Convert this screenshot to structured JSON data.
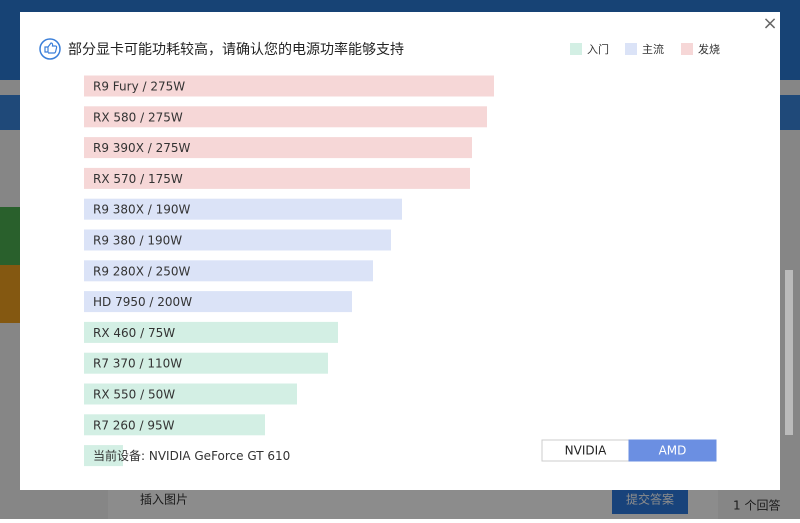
{
  "chart_data": {
    "type": "bar",
    "title": "部分显卡可能功耗较高，请确认您的电源功率能够支持",
    "categories": [
      "R9 Fury / 275W",
      "RX 580 / 275W",
      "R9 390X / 275W",
      "RX 570 / 175W",
      "R9 380X / 190W",
      "R9 380 / 190W",
      "R9 280X / 250W",
      "HD 7950 / 200W",
      "RX 460 / 75W",
      "R7 370 / 110W",
      "RX 550 / 50W",
      "R7 260 / 95W",
      "当前设备: NVIDIA GeForce GT 610"
    ],
    "series": [
      {
        "name": "入门",
        "color": "#d3efe4",
        "values": [
          null,
          null,
          null,
          null,
          null,
          null,
          null,
          null,
          254,
          244,
          213,
          181,
          39
        ]
      },
      {
        "name": "主流",
        "color": "#dbe3f7",
        "values": [
          null,
          null,
          null,
          null,
          318,
          307,
          289,
          268,
          null,
          null,
          null,
          null,
          null
        ]
      },
      {
        "name": "发烧",
        "color": "#f6d7d7",
        "values": [
          410,
          403,
          388,
          386,
          null,
          null,
          null,
          null,
          null,
          null,
          null,
          null,
          null
        ]
      }
    ]
  },
  "toggle": {
    "options": [
      "NVIDIA",
      "AMD"
    ],
    "active": 1
  },
  "background": {
    "insert_image": "插入图片",
    "submit": "提交答案",
    "answers": "1 个回答"
  }
}
